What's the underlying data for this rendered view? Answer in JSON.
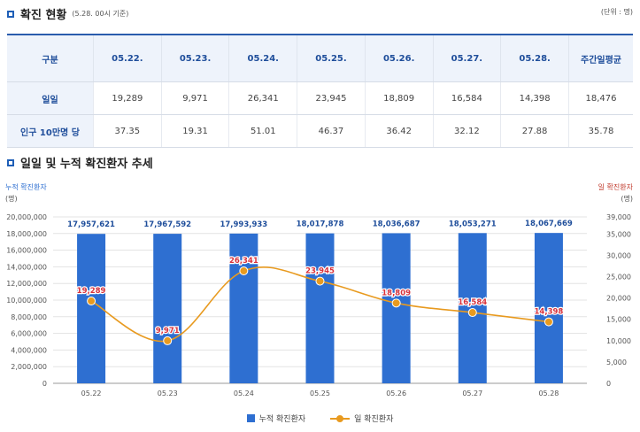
{
  "section1": {
    "title": "확진 현황",
    "subtitle": "(5.28. 00시 기준)",
    "unit": "(단위 : 명)"
  },
  "table": {
    "headers": [
      "구분",
      "05.22.",
      "05.23.",
      "05.24.",
      "05.25.",
      "05.26.",
      "05.27.",
      "05.28.",
      "주간일평균"
    ],
    "rows": [
      {
        "label": "일일",
        "values": [
          "19,289",
          "9,971",
          "26,341",
          "23,945",
          "18,809",
          "16,584",
          "14,398",
          "18,476"
        ]
      },
      {
        "label": "인구 10만명 당",
        "values": [
          "37.35",
          "19.31",
          "51.01",
          "46.37",
          "36.42",
          "32.12",
          "27.88",
          "35.78"
        ]
      }
    ]
  },
  "section2": {
    "title": "일일 및 누적 확진환자 추세"
  },
  "chart_data": {
    "type": "bar",
    "categories": [
      "05.22",
      "05.23",
      "05.24",
      "05.25",
      "05.26",
      "05.27",
      "05.28"
    ],
    "series": [
      {
        "name": "누적 확진환자",
        "type": "bar",
        "axis": "left",
        "color": "#2e6fd1",
        "values": [
          17957621,
          17967592,
          17993933,
          18017878,
          18036687,
          18053271,
          18067669
        ],
        "labels": [
          "17,957,621",
          "17,967,592",
          "17,993,933",
          "18,017,878",
          "18,036,687",
          "18,053,271",
          "18,067,669"
        ]
      },
      {
        "name": "일 확진환자",
        "type": "line",
        "axis": "right",
        "color": "#e89a1f",
        "values": [
          19289,
          9971,
          26341,
          23945,
          18809,
          16584,
          14398
        ],
        "labels": [
          "19,289",
          "9,971",
          "26,341",
          "23,945",
          "18,809",
          "16,584",
          "14,398"
        ]
      }
    ],
    "left_axis": {
      "label": "누적 확진환자",
      "unit": "(명)",
      "ylim": [
        0,
        20000000
      ],
      "ticks": [
        "0",
        "2,000,000",
        "4,000,000",
        "6,000,000",
        "8,000,000",
        "10,000,000",
        "12,000,000",
        "14,000,000",
        "16,000,000",
        "18,000,000",
        "20,000,000"
      ]
    },
    "right_axis": {
      "label": "일 확진환자",
      "unit": "(명)",
      "ylim": [
        0,
        39000
      ],
      "ticks": [
        "0",
        "5,000",
        "10,000",
        "15,000",
        "20,000",
        "25,000",
        "30,000",
        "35,000",
        "39,000"
      ],
      "tick_values": [
        0,
        5000,
        10000,
        15000,
        20000,
        25000,
        30000,
        35000,
        39000
      ]
    },
    "grid": true,
    "legend": "bottom-center"
  }
}
